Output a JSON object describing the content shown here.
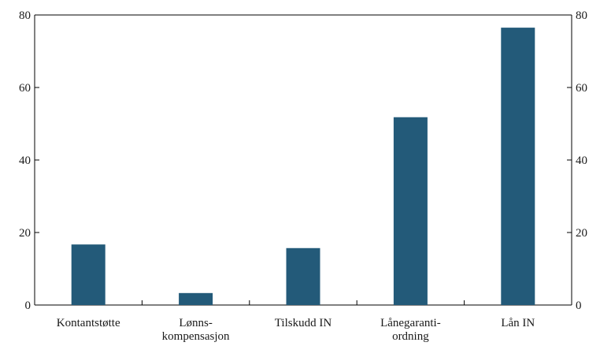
{
  "chart_data": {
    "type": "bar",
    "title": "",
    "xlabel": "",
    "ylabel": "",
    "categories": [
      [
        "Kontantstøtte"
      ],
      [
        "Lønns-",
        "kompensasjon"
      ],
      [
        "Tilskudd IN"
      ],
      [
        "Lånegaranti-",
        "ordning"
      ],
      [
        "Lån IN"
      ]
    ],
    "values": [
      16.7,
      3.3,
      15.7,
      51.8,
      76.5
    ],
    "ylim": [
      0,
      80
    ],
    "yticks": [
      0,
      20,
      40,
      60,
      80
    ],
    "ytick_labels": [
      "0",
      "20",
      "40",
      "60",
      "80"
    ],
    "y_axis_left": true,
    "y_axis_right": true,
    "grid": false,
    "legend": "none",
    "bar_color": "#235a79"
  }
}
